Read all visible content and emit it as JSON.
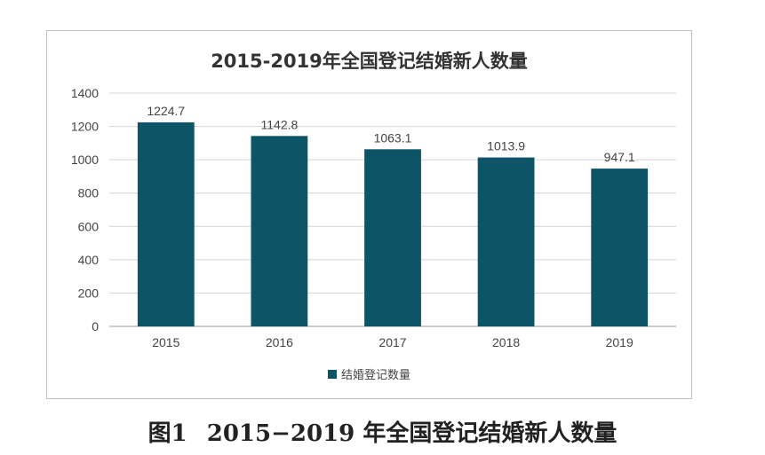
{
  "chart_data": {
    "type": "bar",
    "title": "2015-2019年全国登记结婚新人数量",
    "categories": [
      "2015",
      "2016",
      "2017",
      "2018",
      "2019"
    ],
    "series": [
      {
        "name": "结婚登记数量",
        "values": [
          1224.7,
          1142.8,
          1063.1,
          1013.9,
          947.1
        ]
      }
    ],
    "data_labels": [
      "1224.7",
      "1142.8",
      "1063.1",
      "1013.9",
      "947.1"
    ],
    "y_ticks": [
      "0",
      "200",
      "400",
      "600",
      "800",
      "1000",
      "1200",
      "1400"
    ],
    "ylim": [
      0,
      1400
    ],
    "grid": true,
    "legend_position": "bottom",
    "bar_color": "#0d5566",
    "xlabel": "",
    "ylabel": ""
  },
  "caption": {
    "label": "图1",
    "text": "2015−2019 年全国登记结婚新人数量"
  }
}
